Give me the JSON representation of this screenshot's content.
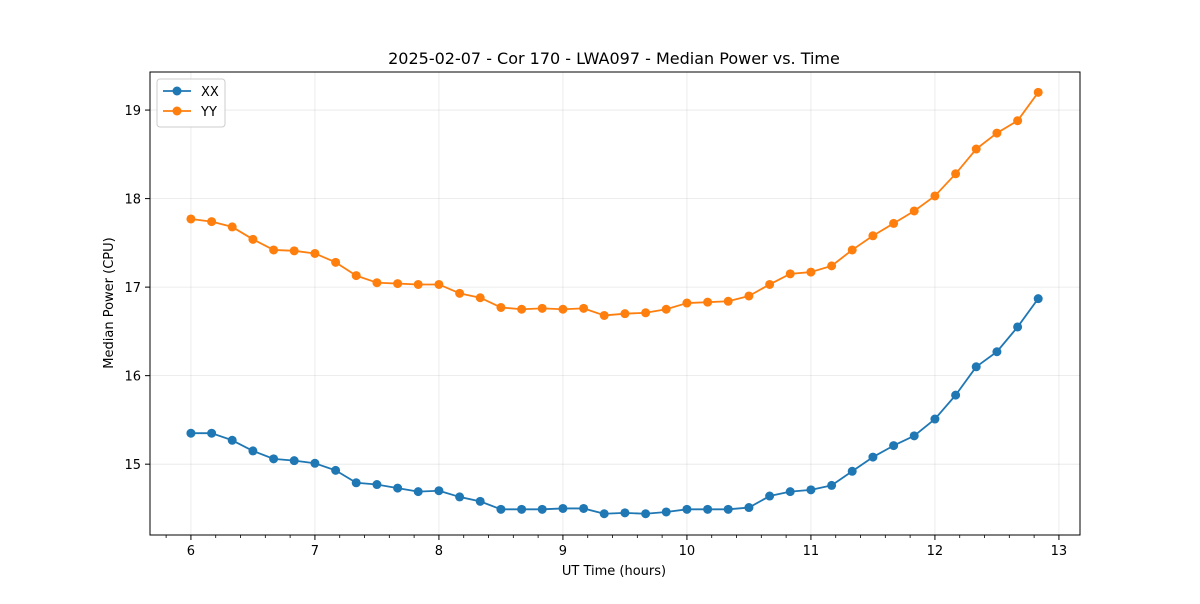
{
  "chart_data": {
    "type": "line",
    "title": "2025-02-07 - Cor 170 - LWA097 - Median Power vs. Time",
    "xlabel": "UT Time (hours)",
    "ylabel": "Median Power (CPU)",
    "xlim": [
      5.67,
      13.17
    ],
    "ylim": [
      14.2,
      19.43
    ],
    "xticks": [
      6,
      7,
      8,
      9,
      10,
      11,
      12,
      13
    ],
    "yticks": [
      15,
      16,
      17,
      18,
      19
    ],
    "grid": true,
    "legend_position": "top-left",
    "x": [
      6.0,
      6.167,
      6.333,
      6.5,
      6.667,
      6.833,
      7.0,
      7.167,
      7.333,
      7.5,
      7.667,
      7.833,
      8.0,
      8.167,
      8.333,
      8.5,
      8.667,
      8.833,
      9.0,
      9.167,
      9.333,
      9.5,
      9.667,
      9.833,
      10.0,
      10.167,
      10.333,
      10.5,
      10.667,
      10.833,
      11.0,
      11.167,
      11.333,
      11.5,
      11.667,
      11.833,
      12.0,
      12.167,
      12.333,
      12.5,
      12.667,
      12.833
    ],
    "series": [
      {
        "name": "XX",
        "color": "#1f77b4",
        "values": [
          15.35,
          15.35,
          15.27,
          15.15,
          15.06,
          15.04,
          15.01,
          14.93,
          14.79,
          14.77,
          14.73,
          14.69,
          14.7,
          14.63,
          14.58,
          14.49,
          14.49,
          14.49,
          14.5,
          14.5,
          14.44,
          14.45,
          14.44,
          14.46,
          14.49,
          14.49,
          14.49,
          14.51,
          14.64,
          14.69,
          14.71,
          14.76,
          14.92,
          15.08,
          15.21,
          15.32,
          15.51,
          15.78,
          16.1,
          16.27,
          16.55,
          16.87
        ]
      },
      {
        "name": "YY",
        "color": "#ff7f0e",
        "values": [
          17.77,
          17.74,
          17.68,
          17.54,
          17.42,
          17.41,
          17.38,
          17.28,
          17.13,
          17.05,
          17.04,
          17.03,
          17.03,
          16.93,
          16.88,
          16.77,
          16.75,
          16.76,
          16.75,
          16.76,
          16.68,
          16.7,
          16.71,
          16.75,
          16.82,
          16.83,
          16.84,
          16.9,
          17.03,
          17.15,
          17.17,
          17.24,
          17.42,
          17.58,
          17.72,
          17.86,
          18.03,
          18.28,
          18.56,
          18.74,
          18.88,
          19.2
        ]
      }
    ]
  }
}
